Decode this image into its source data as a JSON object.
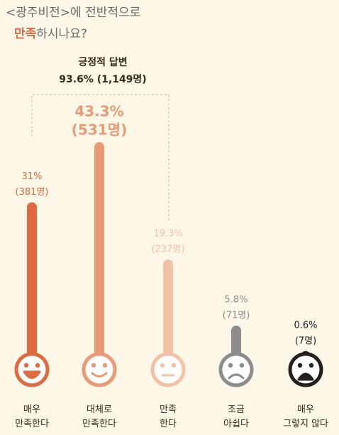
{
  "chart_data": {
    "type": "bar",
    "title": "<광주비전>에 전반적으로",
    "subtitle_highlight": "만족",
    "subtitle_rest": "하시나요?",
    "annotation_title": "긍정적 답변",
    "annotation_value": "93.6% (1,149명)",
    "categories": [
      "매우\n만족한다",
      "대체로\n만족한다",
      "만족\n한다",
      "조금\n아쉽다",
      "매우\n그렇지 않다"
    ],
    "values": [
      31,
      43.3,
      19.3,
      5.8,
      0.6
    ],
    "value_labels": [
      "31%",
      "43.3%",
      "19.3%",
      "5.8%",
      "0.6%"
    ],
    "counts": [
      381,
      531,
      237,
      71,
      7
    ],
    "count_labels": [
      "(381명)",
      "(531명)",
      "(237명)",
      "(71명)",
      "(7명)"
    ],
    "colors": [
      "#e0693f",
      "#ec9a76",
      "#f3c1a5",
      "#8c8c8c",
      "#231f1c"
    ]
  }
}
